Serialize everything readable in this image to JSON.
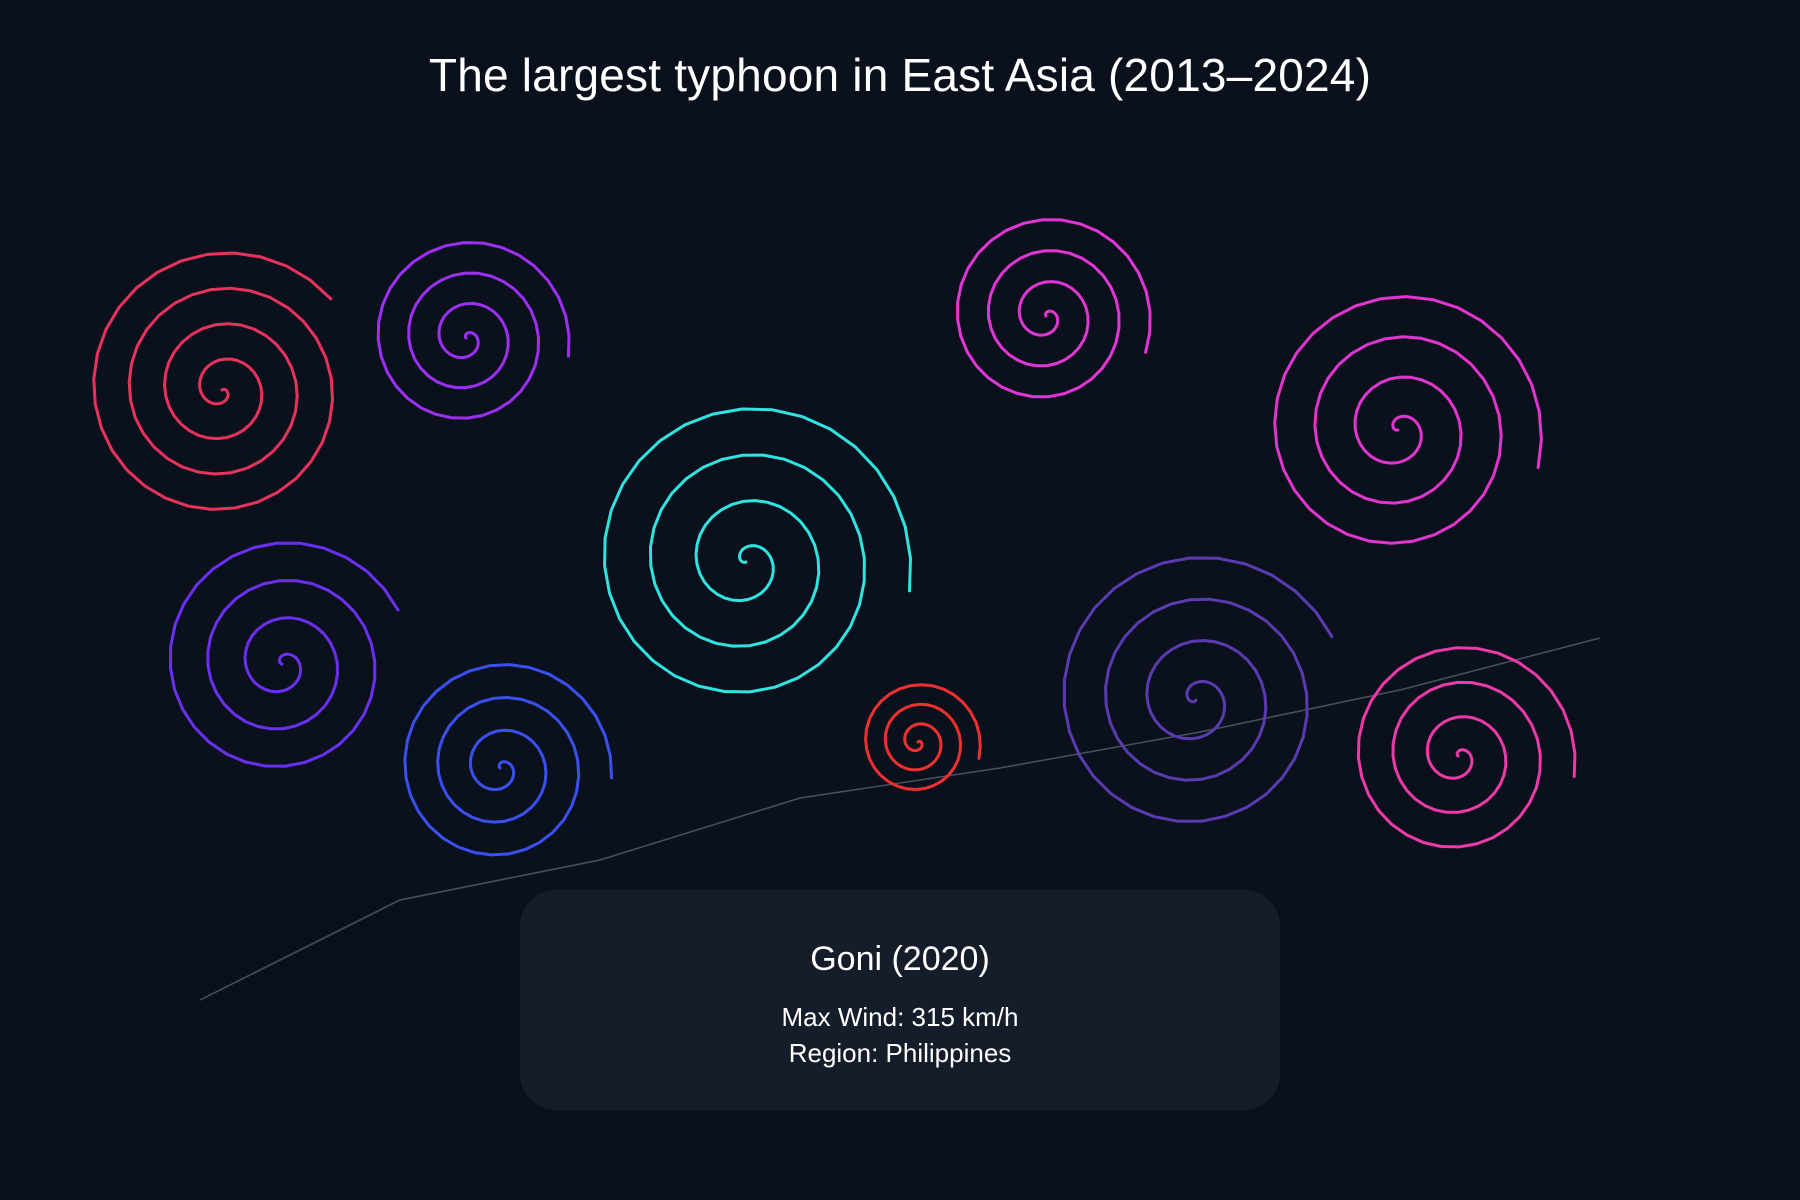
{
  "chart_data": {
    "type": "spiral-bubble",
    "title": "The largest typhoon in East Asia (2013–2024)",
    "series": [
      {
        "color": "#e8325e"
      },
      {
        "color": "#9b2ff2"
      },
      {
        "color": "#6a2ff2"
      },
      {
        "color": "#3a4ff0"
      },
      {
        "color": "#2fe3e0"
      },
      {
        "color": "#ee3030"
      },
      {
        "color": "#e235d6"
      },
      {
        "color": "#e135cf"
      },
      {
        "color": "#5a3ab0"
      },
      {
        "color": "#ec3aa8"
      }
    ],
    "trend_line": {
      "color": "#4a5060"
    },
    "tooltip": {
      "name_label": "Goni (2020)",
      "wind_label": "Max Wind: 315 km/h",
      "region_label": "Region: Philippines"
    }
  }
}
